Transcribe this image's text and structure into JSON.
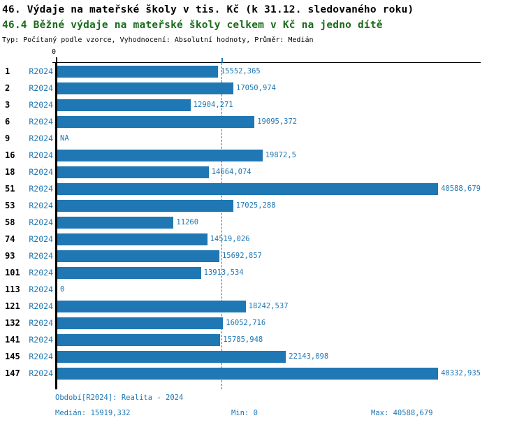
{
  "header": {
    "title": "46. Výdaje na mateřské školy v tis. Kč (k 31.12. sledovaného roku)",
    "subtitle": "46.4 Běžné výdaje na mateřské školy celkem v Kč na jedno dítě",
    "meta": "Typ: Počítaný podle vzorce, Vyhodnocení: Absolutní hodnoty, Průměr: Medián"
  },
  "chart_data": {
    "type": "bar",
    "orientation": "horizontal",
    "title": "46. Výdaje na mateřské školy v tis. Kč (k 31.12. sledovaného roku)",
    "subtitle": "46.4 Běžné výdaje na mateřské školy celkem v Kč na jedno dítě",
    "categories": [
      "1",
      "2",
      "3",
      "6",
      "9",
      "16",
      "18",
      "51",
      "53",
      "58",
      "74",
      "93",
      "101",
      "113",
      "121",
      "132",
      "141",
      "145",
      "147"
    ],
    "period_label": "R2024",
    "values": [
      15552.365,
      17050.974,
      12904.271,
      19095.372,
      null,
      19872.5,
      14664.074,
      40588.679,
      17025.288,
      11260,
      14519.026,
      15692.857,
      13913.534,
      0,
      18242.537,
      16052.716,
      15785.948,
      22143.098,
      40332.935
    ],
    "value_labels": [
      "15552,365",
      "17050,974",
      "12904,271",
      "19095,372",
      "NA",
      "19872,5",
      "14664,074",
      "40588,679",
      "17025,288",
      "11260",
      "14519,026",
      "15692,857",
      "13913,534",
      "0",
      "18242,537",
      "16052,716",
      "15785,948",
      "22143,098",
      "40332,935"
    ],
    "xlim": [
      0,
      41000
    ],
    "axis_zero_label": "0",
    "median": 15919.332,
    "min": 0,
    "max": 40588.679,
    "bar_color": "#1f77b4",
    "median_line_color": "#1f77b4",
    "legend_position": "none",
    "grid": false
  },
  "footer": {
    "period_line": "Období[R2024]: Realita - 2024",
    "median_label": "Medián: 15919,332",
    "min_label": "Min: 0",
    "max_label": "Max: 40588,679"
  }
}
